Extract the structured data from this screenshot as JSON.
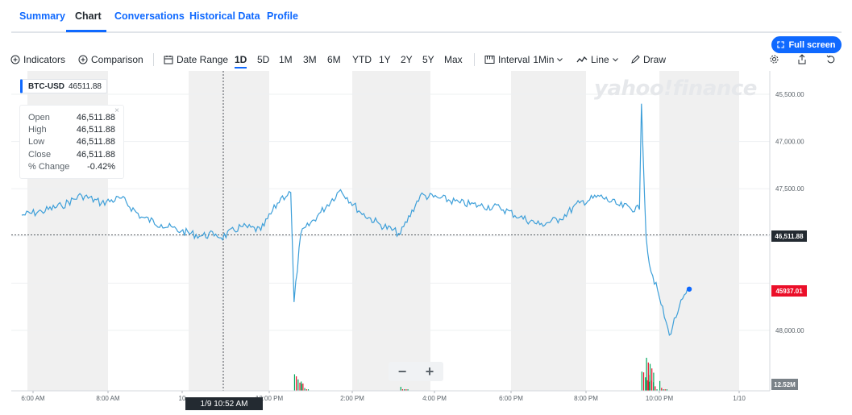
{
  "tabs": [
    {
      "label": "Summary",
      "active": false
    },
    {
      "label": "Chart",
      "active": true
    },
    {
      "label": "Conversations",
      "active": false
    },
    {
      "label": "Historical Data",
      "active": false
    },
    {
      "label": "Profile",
      "active": false
    }
  ],
  "fullscreen_label": "Full screen",
  "toolbar": {
    "indicators": "Indicators",
    "comparison": "Comparison",
    "date_range": "Date Range",
    "ranges": [
      "1D",
      "5D",
      "1M",
      "3M",
      "6M",
      "YTD",
      "1Y",
      "2Y",
      "5Y",
      "Max"
    ],
    "active_range": "1D",
    "interval_label": "Interval",
    "interval_value": "1Min",
    "chart_type": "Line",
    "draw": "Draw"
  },
  "symbol_label": {
    "symbol": "BTC-USD",
    "price": "46511.88"
  },
  "ohlc": {
    "rows": [
      {
        "key": "Open",
        "value": "46,511.88"
      },
      {
        "key": "High",
        "value": "46,511.88"
      },
      {
        "key": "Low",
        "value": "46,511.88"
      },
      {
        "key": "Close",
        "value": "46,511.88"
      },
      {
        "key": "% Change",
        "value": "-0.42%"
      }
    ],
    "close_glyph": "×"
  },
  "watermark": "yahoo!finance",
  "price_tag": "46,511.88",
  "live_tag": "45937.01",
  "volume_tag": "12.52M",
  "crosshair_time": "1/9 10:52 AM",
  "colors": {
    "accent": "#0f69ff",
    "line": "#3d9fd9",
    "down": "#eb0f29",
    "volume_up": "#00a85a",
    "shade": "#f0f0f0"
  },
  "chart_data": {
    "type": "line",
    "series": [
      {
        "x": [
          "6:00 AM",
          "6:30 AM",
          "7:00 AM",
          "7:30 AM",
          "8:00 AM",
          "8:30 AM",
          "9:00 AM",
          "9:30 AM",
          "10:00 AM",
          "10:30 AM",
          "10:52 AM",
          "11:00 AM",
          "11:30 AM",
          "12:00 PM",
          "12:30 PM",
          "12:45 PM",
          "12:50 PM",
          "1:00 PM",
          "1:30 PM",
          "2:00 PM",
          "2:30 PM",
          "3:00 PM",
          "3:30 PM",
          "4:00 PM",
          "4:30 PM",
          "5:00 PM",
          "5:30 PM",
          "6:00 PM",
          "6:30 PM",
          "7:00 PM",
          "7:30 PM",
          "8:00 PM",
          "8:30 PM",
          "9:00 PM",
          "9:30 PM",
          "9:33 PM",
          "9:40 PM",
          "9:45 PM",
          "10:00 PM",
          "10:15 PM",
          "10:30 PM",
          "10:45 PM"
        ],
        "values": [
          46720,
          46760,
          46820,
          46930,
          46850,
          46900,
          46700,
          46620,
          46550,
          46500,
          46520,
          46480,
          46600,
          46560,
          46900,
          46960,
          45800,
          46520,
          46750,
          46990,
          46750,
          46620,
          46520,
          46930,
          46900,
          46850,
          46820,
          46800,
          46700,
          46620,
          46680,
          46850,
          46920,
          46820,
          46780,
          47900,
          46500,
          46200,
          45850,
          45450,
          45750,
          45937.01
        ]
      }
    ],
    "volume": {
      "x": [
        "12:50 PM",
        "1:00 PM",
        "3:30 PM",
        "9:33 PM",
        "9:40 PM",
        "9:45 PM",
        "10:00 PM"
      ],
      "values": [
        22,
        14,
        6,
        25,
        40,
        18,
        10
      ]
    },
    "yticks": [
      "45,500.00",
      "47,000.00",
      "47,500.00",
      "48,000.00"
    ],
    "xticks": [
      "6:00 AM",
      "8:00 AM",
      "10",
      "12:00 PM",
      "2:00 PM",
      "4:00 PM",
      "6:00 PM",
      "8:00 PM",
      "10:00 PM",
      "1/10"
    ],
    "ylim": [
      45000,
      48000
    ],
    "reference_line": 46511.88,
    "grid": true
  }
}
